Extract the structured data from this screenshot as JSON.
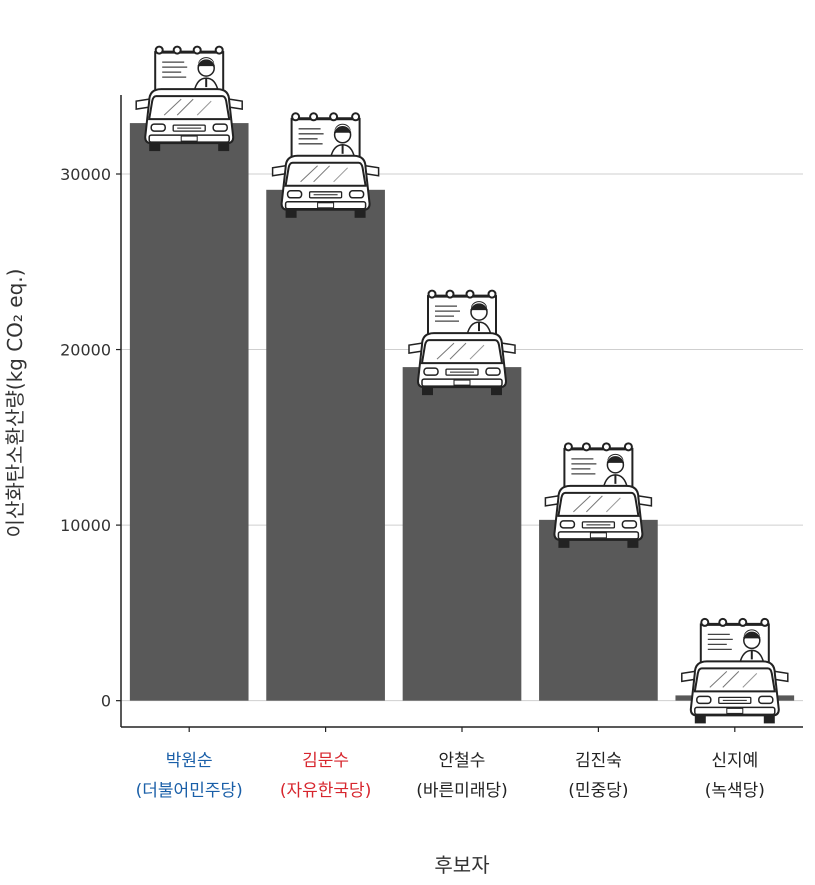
{
  "chart_data": {
    "type": "bar",
    "title": "",
    "xlabel": "후보자",
    "ylabel": "이산화탄소환산량(kg CO₂ eq.)",
    "ylim": [
      -1500,
      34500
    ],
    "yticks": [
      0,
      10000,
      20000,
      30000
    ],
    "grid": true,
    "categories": [
      {
        "name": "박원순",
        "party": "(더불어민주당)",
        "color": "#1a5fa8"
      },
      {
        "name": "김문수",
        "party": "(자유한국당)",
        "color": "#d7262e"
      },
      {
        "name": "안철수",
        "party": "(바른미래당)",
        "color": "#222222"
      },
      {
        "name": "김진숙",
        "party": "(민중당)",
        "color": "#222222"
      },
      {
        "name": "신지예",
        "party": "(녹색당)",
        "color": "#222222"
      }
    ],
    "values": [
      32900,
      29100,
      19000,
      10300,
      300
    ],
    "bar_color": "#595959",
    "marker_icon": "campaign-truck-icon"
  }
}
